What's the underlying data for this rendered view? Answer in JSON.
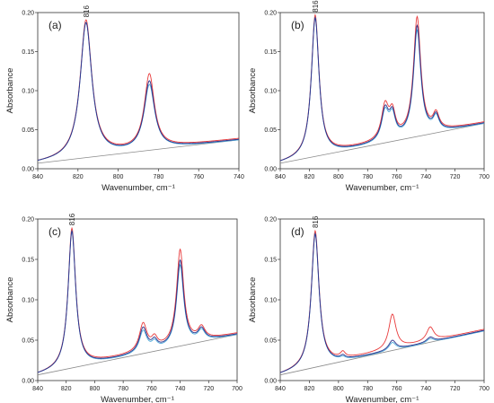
{
  "figure": {
    "panels": [
      {
        "id": "a"
      },
      {
        "id": "b"
      },
      {
        "id": "c"
      },
      {
        "id": "d"
      }
    ]
  },
  "colors": {
    "red": "#e8393a",
    "cyan": "#4aa8d8",
    "navy": "#2b2f8a",
    "gray": "#8a8a8a",
    "axis": "#333333"
  },
  "chart_data": [
    {
      "type": "line",
      "panel_label": "(a)",
      "peak_label": "816",
      "xlabel": "Wavenumber, cm⁻¹",
      "ylabel": "Absorbance",
      "xlim": [
        840,
        740
      ],
      "ylim": [
        0,
        0.2
      ],
      "x_ticks": [
        "840",
        "820",
        "800",
        "780",
        "760",
        "740"
      ],
      "y_ticks": [
        "0.00",
        "0.05",
        "0.10",
        "0.15",
        "0.20"
      ],
      "grid": false,
      "series": [
        {
          "color": "red",
          "peaks": [
            [
              816,
              0.175,
              3.5
            ],
            [
              784.5,
              0.095,
              3.0
            ]
          ]
        },
        {
          "color": "cyan",
          "peaks": [
            [
              816,
              0.173,
              3.5
            ],
            [
              784.5,
              0.083,
              3.2
            ]
          ]
        },
        {
          "color": "navy",
          "peaks": [
            [
              816,
              0.172,
              3.5
            ],
            [
              784.5,
              0.087,
              3.1
            ]
          ]
        }
      ],
      "baseline": {
        "x": [
          840,
          740
        ],
        "y": [
          0.007,
          0.037
        ]
      }
    },
    {
      "type": "line",
      "panel_label": "(b)",
      "peak_label": "816",
      "xlabel": "Wavenumber, cm⁻¹",
      "ylabel": "Absorbance",
      "xlim": [
        840,
        700
      ],
      "ylim": [
        0,
        0.2
      ],
      "x_ticks": [
        "840",
        "820",
        "800",
        "780",
        "760",
        "740",
        "720",
        "700"
      ],
      "y_ticks": [
        "0.00",
        "0.05",
        "0.10",
        "0.15",
        "0.20"
      ],
      "grid": false,
      "series": [
        {
          "color": "red",
          "peaks": [
            [
              816,
              0.18,
              3.2
            ],
            [
              768,
              0.043,
              3.0
            ],
            [
              763,
              0.03,
              2.5
            ],
            [
              746,
              0.15,
              3.0
            ],
            [
              733,
              0.02,
              2.5
            ]
          ]
        },
        {
          "color": "cyan",
          "peaks": [
            [
              816,
              0.178,
              3.2
            ],
            [
              768,
              0.037,
              3.0
            ],
            [
              763,
              0.028,
              2.5
            ],
            [
              746,
              0.135,
              3.0
            ],
            [
              733,
              0.018,
              2.5
            ]
          ]
        },
        {
          "color": "navy",
          "peaks": [
            [
              816,
              0.177,
              3.2
            ],
            [
              768,
              0.039,
              3.0
            ],
            [
              763,
              0.029,
              2.5
            ],
            [
              746,
              0.14,
              3.0
            ],
            [
              733,
              0.019,
              2.5
            ]
          ]
        }
      ],
      "baseline": {
        "x": [
          840,
          700
        ],
        "y": [
          0.007,
          0.058
        ]
      }
    },
    {
      "type": "line",
      "panel_label": "(c)",
      "peak_label": "816",
      "xlabel": "Wavenumber, cm⁻¹",
      "ylabel": "Absorbance",
      "xlim": [
        840,
        700
      ],
      "ylim": [
        0,
        0.2
      ],
      "x_ticks": [
        "840",
        "820",
        "800",
        "780",
        "760",
        "740",
        "720",
        "700"
      ],
      "y_ticks": [
        "0.00",
        "0.05",
        "0.10",
        "0.15",
        "0.20"
      ],
      "grid": false,
      "series": [
        {
          "color": "red",
          "peaks": [
            [
              816,
              0.172,
              3.2
            ],
            [
              766,
              0.034,
              3.2
            ],
            [
              758,
              0.012,
              2.5
            ],
            [
              740,
              0.117,
              3.0
            ],
            [
              725,
              0.015,
              3.0
            ]
          ]
        },
        {
          "color": "cyan",
          "peaks": [
            [
              816,
              0.17,
              3.2
            ],
            [
              766,
              0.027,
              3.2
            ],
            [
              758,
              0.009,
              2.5
            ],
            [
              740,
              0.1,
              3.0
            ],
            [
              725,
              0.013,
              3.0
            ]
          ]
        },
        {
          "color": "navy",
          "peaks": [
            [
              816,
              0.169,
              3.2
            ],
            [
              766,
              0.03,
              3.2
            ],
            [
              758,
              0.01,
              2.5
            ],
            [
              740,
              0.105,
              3.0
            ],
            [
              725,
              0.014,
              3.0
            ]
          ]
        }
      ],
      "baseline": {
        "x": [
          840,
          700
        ],
        "y": [
          0.007,
          0.057
        ]
      }
    },
    {
      "type": "line",
      "panel_label": "(d)",
      "peak_label": "816",
      "xlabel": "Wavenumber, cm⁻¹",
      "ylabel": "Absorbance",
      "xlim": [
        840,
        700
      ],
      "ylim": [
        0,
        0.2
      ],
      "x_ticks": [
        "840",
        "820",
        "800",
        "780",
        "760",
        "740",
        "720",
        "700"
      ],
      "y_ticks": [
        "0.00",
        "0.05",
        "0.10",
        "0.15",
        "0.20"
      ],
      "grid": false,
      "series": [
        {
          "color": "red",
          "peaks": [
            [
              816,
              0.168,
              3.2
            ],
            [
              797,
              0.007,
              2.0
            ],
            [
              763,
              0.043,
              3.0
            ],
            [
              737,
              0.017,
              3.0
            ]
          ]
        },
        {
          "color": "cyan",
          "peaks": [
            [
              816,
              0.166,
              3.2
            ],
            [
              797,
              0.003,
              2.0
            ],
            [
              763,
              0.01,
              3.0
            ],
            [
              737,
              0.005,
              3.0
            ]
          ]
        },
        {
          "color": "navy",
          "peaks": [
            [
              816,
              0.165,
              3.2
            ],
            [
              797,
              0.004,
              2.0
            ],
            [
              763,
              0.012,
              3.0
            ],
            [
              737,
              0.006,
              3.0
            ]
          ]
        }
      ],
      "baseline": {
        "x": [
          840,
          700
        ],
        "y": [
          0.007,
          0.062
        ]
      }
    }
  ]
}
